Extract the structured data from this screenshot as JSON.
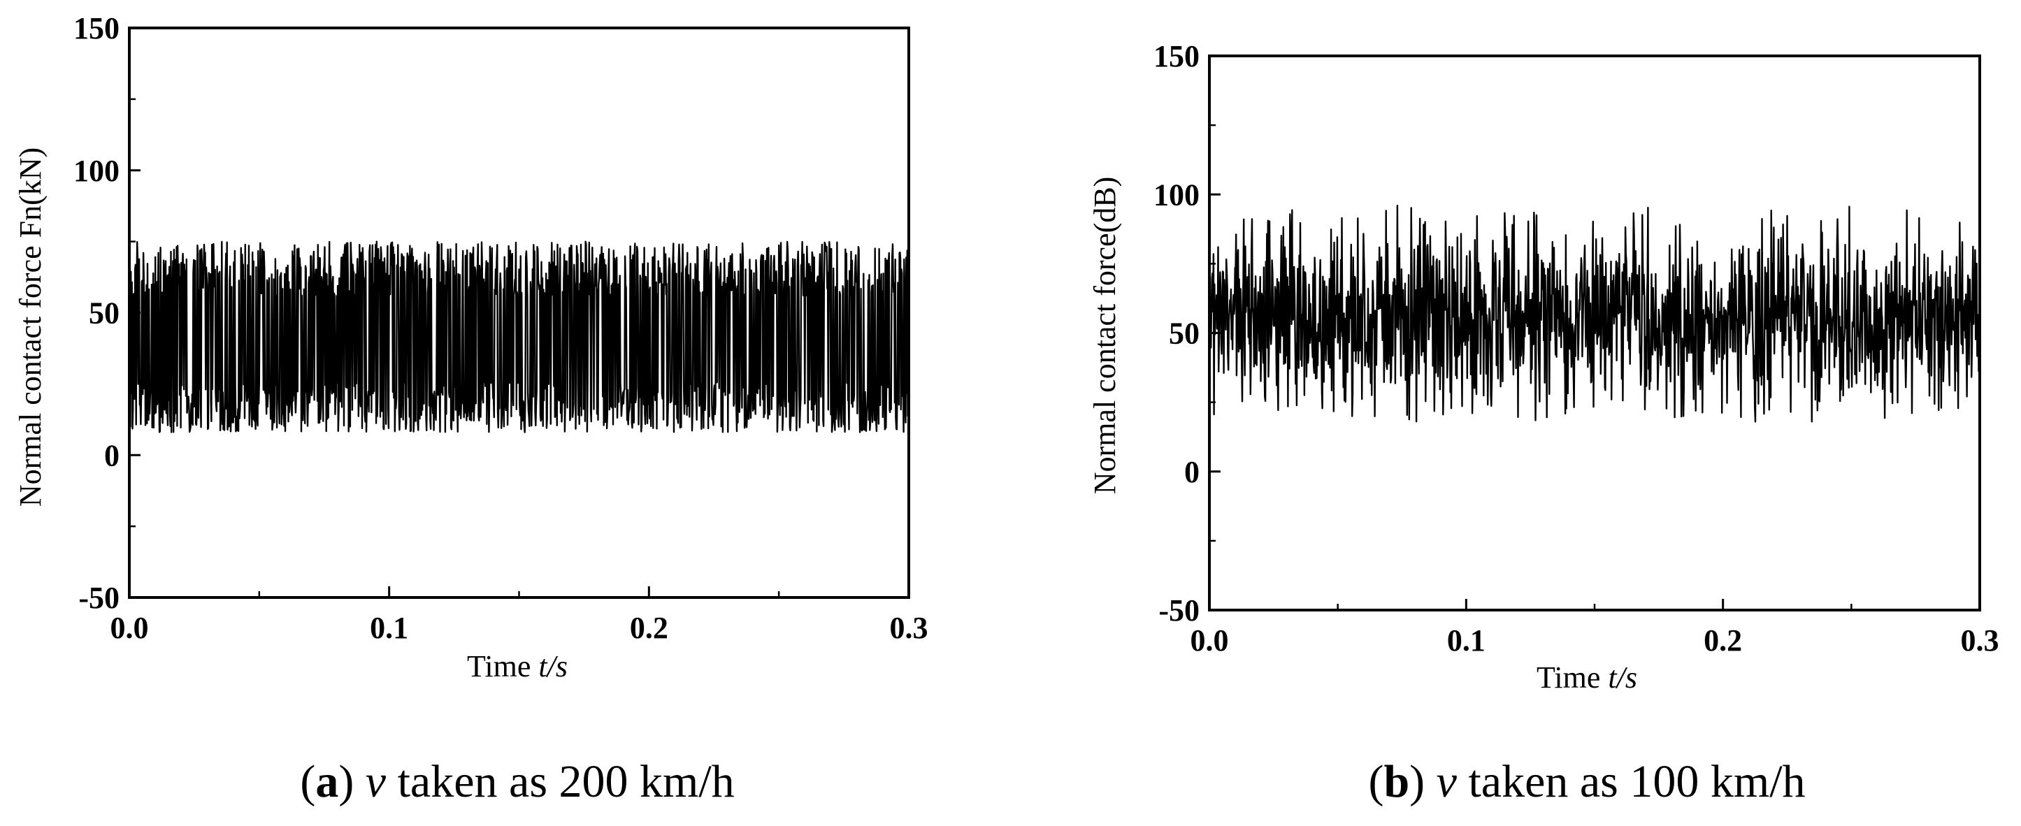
{
  "chart_data": [
    {
      "type": "line",
      "panel": "a",
      "caption": {
        "letter": "a",
        "variable": "v",
        "text": " taken as 200 km/h"
      },
      "ylabel": "Normal contact force Fn(kN)",
      "xlabel": {
        "prefix": "Time ",
        "symbol": "t",
        "suffix": "/s"
      },
      "xlim": [
        0.0,
        0.3
      ],
      "ylim": [
        -50,
        150
      ],
      "xticks": [
        "0.0",
        "0.1",
        "0.2",
        "0.3"
      ],
      "yticks": [
        "-50",
        "0",
        "50",
        "100",
        "150"
      ],
      "grid": false,
      "series": [
        {
          "color": "#000000",
          "duration": 0.3,
          "mean": 40,
          "min": 8,
          "max": 75,
          "pattern": "dense-oscillation"
        }
      ]
    },
    {
      "type": "line",
      "panel": "b",
      "caption": {
        "letter": "b",
        "variable": "v",
        "text": " taken as 100 km/h"
      },
      "ylabel": "Normal contact force(dB)",
      "xlabel": {
        "prefix": "Time ",
        "symbol": "t",
        "suffix": "/s"
      },
      "xlim": [
        0.0,
        0.3
      ],
      "ylim": [
        -50,
        150
      ],
      "xticks": [
        "0.0",
        "0.1",
        "0.2",
        "0.3"
      ],
      "yticks": [
        "-50",
        "0",
        "50",
        "100",
        "150"
      ],
      "grid": false,
      "series": [
        {
          "color": "#000000",
          "duration": 0.3,
          "mean": 55,
          "min": 18,
          "max": 96,
          "pattern": "dense-noise"
        }
      ]
    }
  ]
}
